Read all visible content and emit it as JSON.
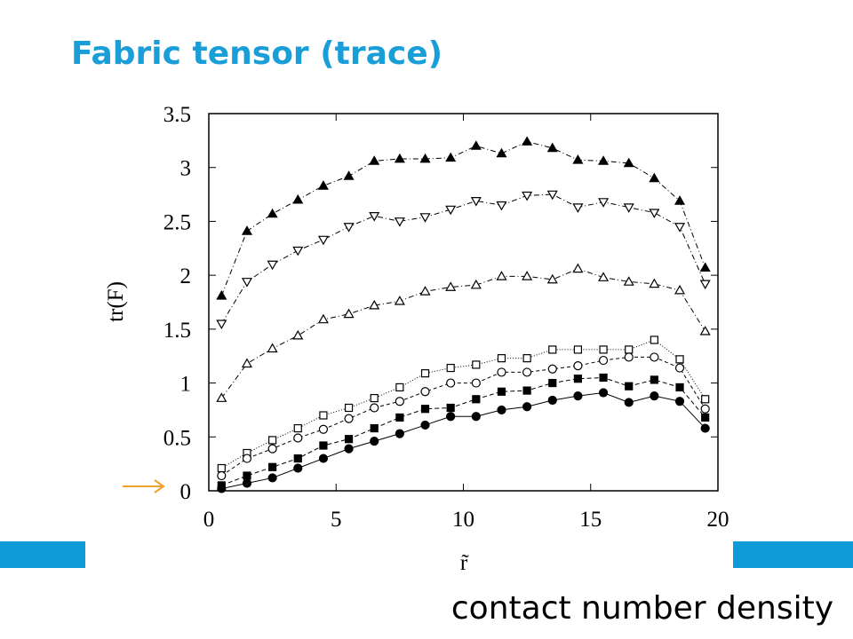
{
  "slide": {
    "title": "Fabric tensor (trace)",
    "caption": "contact number density"
  },
  "chart_data": {
    "type": "line",
    "x_label": "r̃",
    "y_label": "tr(F)",
    "x": [
      0.5,
      1.5,
      2.5,
      3.5,
      4.5,
      5.5,
      6.5,
      7.5,
      8.5,
      9.5,
      10.5,
      11.5,
      12.5,
      13.5,
      14.5,
      15.5,
      16.5,
      17.5,
      18.5,
      19.5
    ],
    "xlim": [
      0,
      20
    ],
    "xticks": [
      0,
      5,
      10,
      15,
      20
    ],
    "ylim": [
      0,
      3.5
    ],
    "yticks": [
      0,
      0.5,
      1,
      1.5,
      2,
      2.5,
      3,
      3.5
    ],
    "series": [
      {
        "color": "#000000",
        "marker": "triangle-up",
        "filled": true,
        "dash": "6 3 1 3",
        "values": [
          1.81,
          2.41,
          2.57,
          2.7,
          2.83,
          2.92,
          3.06,
          3.08,
          3.08,
          3.09,
          3.2,
          3.13,
          3.24,
          3.18,
          3.07,
          3.06,
          3.04,
          2.9,
          2.69,
          2.07
        ]
      },
      {
        "color": "#000000",
        "marker": "triangle-down",
        "filled": false,
        "dash": "6 3 1 3",
        "values": [
          1.55,
          1.94,
          2.1,
          2.23,
          2.33,
          2.45,
          2.55,
          2.5,
          2.54,
          2.61,
          2.69,
          2.65,
          2.74,
          2.75,
          2.63,
          2.68,
          2.63,
          2.58,
          2.45,
          1.92
        ]
      },
      {
        "color": "#000000",
        "marker": "triangle-up",
        "filled": false,
        "dash": "6 3 1 3",
        "values": [
          0.86,
          1.18,
          1.32,
          1.44,
          1.59,
          1.64,
          1.72,
          1.76,
          1.85,
          1.89,
          1.91,
          1.99,
          1.99,
          1.96,
          2.06,
          1.98,
          1.94,
          1.92,
          1.86,
          1.48
        ]
      },
      {
        "color": "#000000",
        "marker": "square",
        "filled": false,
        "dash": "1 2",
        "values": [
          0.21,
          0.35,
          0.47,
          0.58,
          0.7,
          0.77,
          0.86,
          0.96,
          1.09,
          1.14,
          1.17,
          1.23,
          1.23,
          1.31,
          1.31,
          1.31,
          1.31,
          1.4,
          1.22,
          0.85
        ]
      },
      {
        "color": "#000000",
        "marker": "circle",
        "filled": false,
        "dash": "4 3",
        "values": [
          0.14,
          0.3,
          0.39,
          0.49,
          0.57,
          0.67,
          0.77,
          0.83,
          0.92,
          1.0,
          1.0,
          1.1,
          1.1,
          1.13,
          1.16,
          1.21,
          1.24,
          1.24,
          1.14,
          0.76
        ]
      },
      {
        "color": "#000000",
        "marker": "square",
        "filled": true,
        "dash": "5 3",
        "values": [
          0.05,
          0.14,
          0.22,
          0.3,
          0.42,
          0.48,
          0.58,
          0.68,
          0.76,
          0.77,
          0.85,
          0.92,
          0.93,
          1.0,
          1.04,
          1.05,
          0.97,
          1.03,
          0.96,
          0.68
        ]
      },
      {
        "color": "#000000",
        "marker": "circle",
        "filled": true,
        "dash": "none",
        "values": [
          0.02,
          0.07,
          0.12,
          0.21,
          0.3,
          0.39,
          0.46,
          0.53,
          0.61,
          0.69,
          0.69,
          0.75,
          0.78,
          0.84,
          0.88,
          0.91,
          0.82,
          0.88,
          0.83,
          0.58
        ]
      }
    ]
  }
}
